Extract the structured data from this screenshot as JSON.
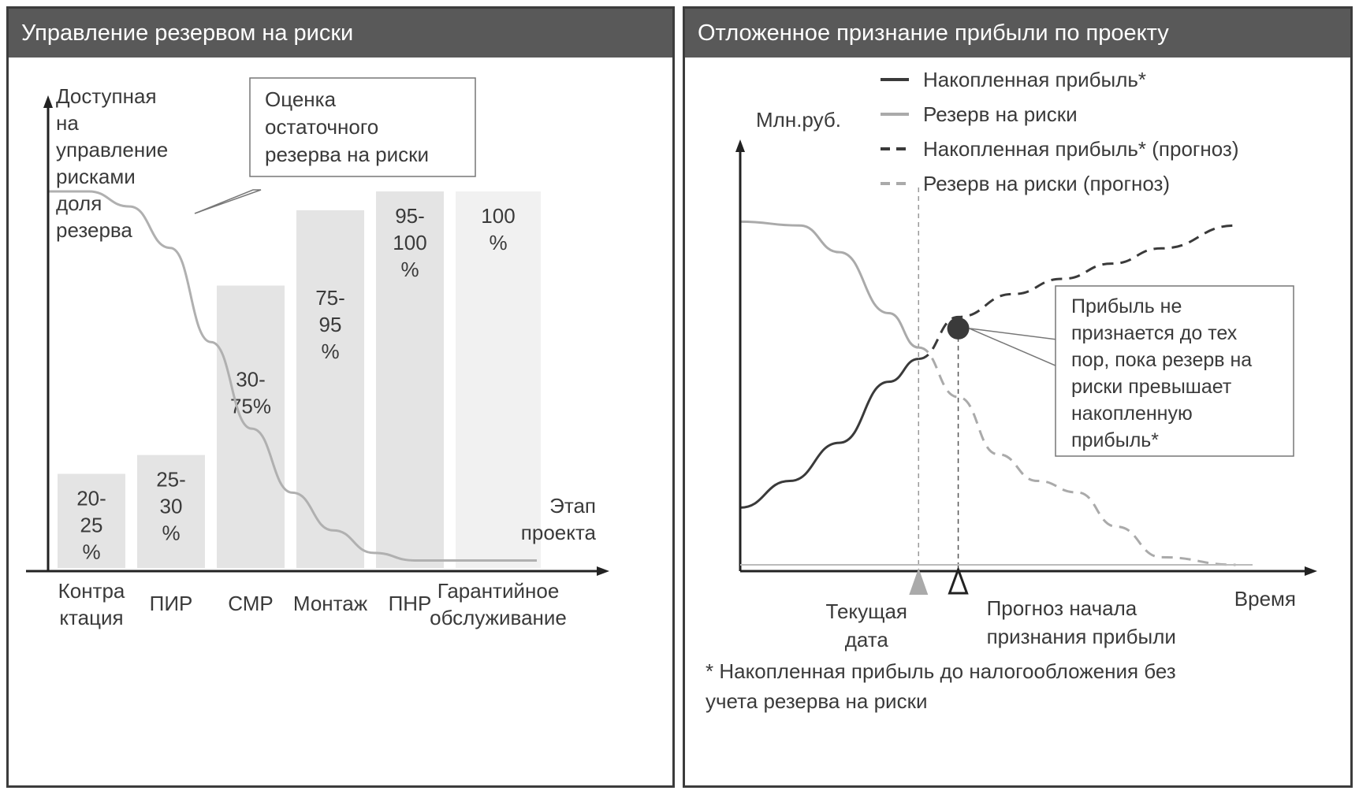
{
  "left_panel": {
    "title": "Управление резервом на риски",
    "y_axis_label": [
      "Доступная",
      "на",
      "управление",
      "рисками",
      "доля",
      "резерва"
    ],
    "x_axis_label": [
      "Этап",
      "проекта"
    ],
    "callout": [
      "Оценка",
      "остаточного",
      "резерва на риски"
    ]
  },
  "right_panel": {
    "title": "Отложенное признание прибыли по проекту",
    "y_axis_label": "Млн.руб.",
    "x_axis_label": "Время",
    "current_date_label": [
      "Текущая",
      "дата"
    ],
    "forecast_label": [
      "Прогноз начала",
      "признания прибыли"
    ],
    "callout": [
      "Прибыль не",
      "признается до тех",
      "пор, пока резерв на",
      "риски превышает",
      "накопленную",
      "прибыль*"
    ],
    "footnote": [
      "* Накопленная прибыль до налогообложения без",
      "учета резерва на риски"
    ]
  },
  "chart_data": [
    {
      "type": "bar",
      "categories": [
        [
          "Контра",
          "ктация"
        ],
        [
          "ПИР"
        ],
        [
          "СМР"
        ],
        [
          "Монтаж"
        ],
        [
          "ПНР"
        ],
        [
          "Гарантийное",
          "обслуживание"
        ]
      ],
      "series": [
        {
          "values": [
            25,
            30,
            75,
            95,
            100,
            100
          ],
          "labels": [
            [
              "20-",
              "25",
              "%"
            ],
            [
              "25-",
              "30",
              "%"
            ],
            [
              "30-",
              "75%"
            ],
            [
              "75-",
              "95",
              "%"
            ],
            [
              "95-",
              "100",
              "%"
            ],
            [
              "100",
              "%"
            ]
          ]
        }
      ],
      "overlay_curve": {
        "description_values": [
          100,
          100,
          96,
          85,
          60,
          37,
          20,
          10,
          4,
          2,
          2
        ],
        "x": [
          0,
          0.5,
          1.0,
          1.5,
          2.0,
          2.5,
          3.0,
          3.5,
          4.0,
          4.5,
          6.0
        ]
      },
      "ylim": [
        0,
        100
      ],
      "colors": {
        "bars": "#e4e4e4",
        "last_bar": "#f1f1f1",
        "curve": "#b0b0b0"
      }
    },
    {
      "type": "line",
      "series": [
        {
          "name": "Накопленная прибыль*",
          "style": "solid",
          "color": "#3a3a3a",
          "x": [
            0,
            1,
            2,
            3,
            3.6
          ],
          "y": [
            15,
            22,
            32,
            48,
            54
          ]
        },
        {
          "name": "Резерв на риски",
          "style": "solid",
          "color": "#aaaaaa",
          "x": [
            0,
            1.2,
            2,
            3,
            3.6
          ],
          "y": [
            90,
            89,
            82,
            66,
            57
          ]
        },
        {
          "name": "Накопленная прибыль* (прогноз)",
          "style": "dashed",
          "color": "#3a3a3a",
          "x": [
            3.6,
            4.4,
            5.5,
            6.5,
            7.5,
            8.5,
            10
          ],
          "y": [
            54,
            65,
            71,
            75,
            79,
            83,
            89
          ]
        },
        {
          "name": "Резерв на риски (прогноз)",
          "style": "dashed",
          "color": "#aaaaaa",
          "x": [
            3.6,
            4.4,
            5.2,
            6,
            6.8,
            7.6,
            8.5,
            10
          ],
          "y": [
            57,
            44,
            29,
            22,
            19,
            10,
            2,
            0
          ]
        }
      ],
      "markers": {
        "current_date_x": 3.6,
        "forecast_x": 4.4,
        "intersection_y": 62
      },
      "xlim": [
        0,
        10.5
      ],
      "ylim": [
        0,
        100
      ]
    }
  ]
}
